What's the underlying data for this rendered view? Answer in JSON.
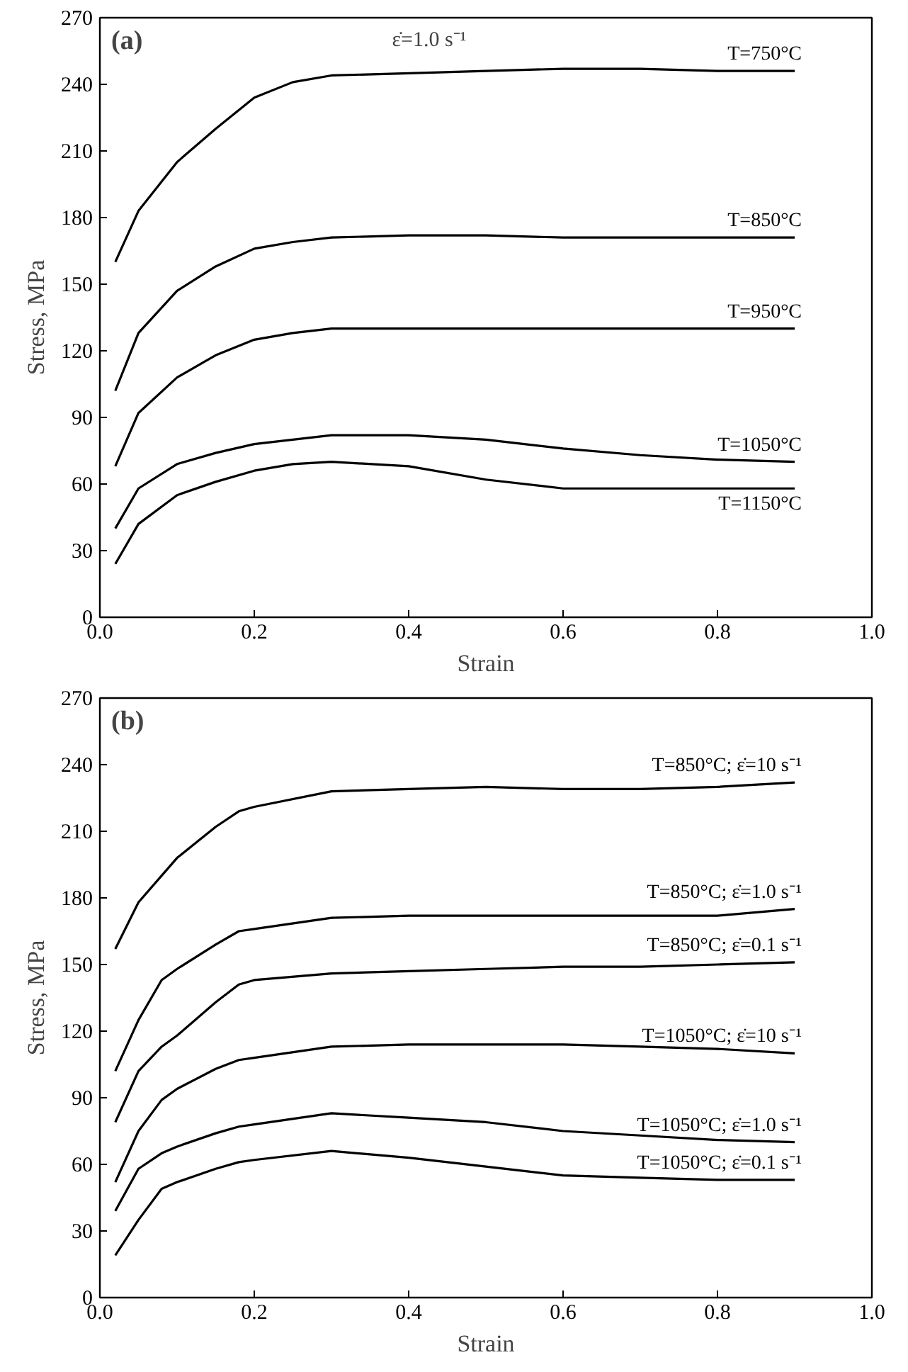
{
  "chart_data": [
    {
      "type": "line",
      "xlabel": "Strain",
      "ylabel": "Stress, MPa",
      "xlim": [
        0.0,
        1.0
      ],
      "ylim": [
        0,
        270
      ],
      "xticks": [
        {
          "value": 0,
          "label": "0.0"
        },
        {
          "value": 0.2,
          "label": "0.2"
        },
        {
          "value": 0.4,
          "label": "0.4"
        },
        {
          "value": 0.6,
          "label": "0.6"
        },
        {
          "value": 0.8,
          "label": "0.8"
        },
        {
          "value": 1.0,
          "label": "1.0"
        }
      ],
      "yticks": [
        0,
        30,
        60,
        90,
        120,
        150,
        180,
        210,
        240,
        270
      ],
      "grid": false,
      "legend": false,
      "annotations": [
        "(a)",
        "ε̇=1.0 s⁻¹"
      ],
      "x": [
        0.02,
        0.05,
        0.1,
        0.15,
        0.2,
        0.25,
        0.3,
        0.4,
        0.5,
        0.6,
        0.7,
        0.8,
        0.9
      ],
      "series": [
        {
          "name": "T=750°C",
          "color": "#000000",
          "values": [
            160,
            183,
            205,
            220,
            234,
            241,
            244,
            245,
            246,
            247,
            247,
            246,
            246
          ]
        },
        {
          "name": "T=850°C",
          "color": "#000000",
          "values": [
            102,
            128,
            147,
            158,
            166,
            169,
            171,
            172,
            172,
            171,
            171,
            171,
            171
          ]
        },
        {
          "name": "T=950°C",
          "color": "#000000",
          "values": [
            68,
            92,
            108,
            118,
            125,
            128,
            130,
            130,
            130,
            130,
            130,
            130,
            130
          ]
        },
        {
          "name": "T=1050°C",
          "color": "#000000",
          "values": [
            40,
            58,
            69,
            74,
            78,
            80,
            82,
            82,
            80,
            76,
            73,
            71,
            70
          ]
        },
        {
          "name": "T=1150°C",
          "color": "#000000",
          "values": [
            24,
            42,
            55,
            61,
            66,
            69,
            70,
            68,
            62,
            58,
            58,
            58,
            58
          ]
        }
      ]
    },
    {
      "type": "line",
      "xlabel": "Strain",
      "ylabel": "Stress, MPa",
      "xlim": [
        0.0,
        1.0
      ],
      "ylim": [
        0,
        270
      ],
      "xticks": [
        {
          "value": 0,
          "label": "0.0"
        },
        {
          "value": 0.2,
          "label": "0.2"
        },
        {
          "value": 0.4,
          "label": "0.4"
        },
        {
          "value": 0.6,
          "label": "0.6"
        },
        {
          "value": 0.8,
          "label": "0.8"
        },
        {
          "value": 1.0,
          "label": "1.0"
        }
      ],
      "yticks": [
        0,
        30,
        60,
        90,
        120,
        150,
        180,
        210,
        240,
        270
      ],
      "grid": false,
      "legend": false,
      "annotations": [
        "(b)"
      ],
      "x": [
        0.02,
        0.05,
        0.08,
        0.1,
        0.15,
        0.18,
        0.2,
        0.3,
        0.4,
        0.5,
        0.6,
        0.7,
        0.8,
        0.9
      ],
      "series": [
        {
          "name": "T=850°C; ε̇=10 s⁻¹",
          "color": "#000000",
          "values": [
            157,
            178,
            190,
            198,
            212,
            219,
            221,
            228,
            229,
            230,
            229,
            229,
            230,
            232
          ]
        },
        {
          "name": "T=850°C; ε̇=1.0 s⁻¹",
          "color": "#000000",
          "values": [
            102,
            125,
            143,
            148,
            159,
            165,
            166,
            171,
            172,
            172,
            172,
            172,
            172,
            175
          ]
        },
        {
          "name": "T=850°C; ε̇=0.1 s⁻¹",
          "color": "#000000",
          "values": [
            79,
            102,
            113,
            118,
            133,
            141,
            143,
            146,
            147,
            148,
            149,
            149,
            150,
            151
          ]
        },
        {
          "name": "T=1050°C; ε̇=10 s⁻¹",
          "color": "#000000",
          "values": [
            52,
            75,
            89,
            94,
            103,
            107,
            108,
            113,
            114,
            114,
            114,
            113,
            112,
            110
          ]
        },
        {
          "name": "T=1050°C; ε̇=1.0 s⁻¹",
          "color": "#000000",
          "values": [
            39,
            58,
            65,
            68,
            74,
            77,
            78,
            83,
            81,
            79,
            75,
            73,
            71,
            70
          ]
        },
        {
          "name": "T=1050°C; ε̇=0.1 s⁻¹",
          "color": "#000000",
          "values": [
            19,
            35,
            49,
            52,
            58,
            61,
            62,
            66,
            63,
            59,
            55,
            54,
            53,
            53
          ]
        }
      ]
    }
  ]
}
